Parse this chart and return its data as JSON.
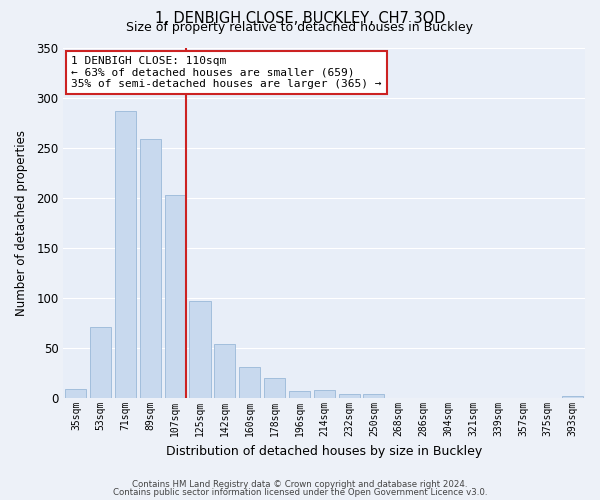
{
  "title": "1, DENBIGH CLOSE, BUCKLEY, CH7 3QD",
  "subtitle": "Size of property relative to detached houses in Buckley",
  "xlabel": "Distribution of detached houses by size in Buckley",
  "ylabel": "Number of detached properties",
  "bar_color": "#c8d9ee",
  "bar_edge_color": "#9ab8d8",
  "highlight_color": "#cc2222",
  "background_color": "#e8eef8",
  "fig_background_color": "#edf1f8",
  "grid_color": "#ffffff",
  "categories": [
    "35sqm",
    "53sqm",
    "71sqm",
    "89sqm",
    "107sqm",
    "125sqm",
    "142sqm",
    "160sqm",
    "178sqm",
    "196sqm",
    "214sqm",
    "232sqm",
    "250sqm",
    "268sqm",
    "286sqm",
    "304sqm",
    "321sqm",
    "339sqm",
    "357sqm",
    "375sqm",
    "393sqm"
  ],
  "values": [
    9,
    71,
    287,
    259,
    203,
    97,
    54,
    31,
    20,
    7,
    8,
    4,
    4,
    0,
    0,
    0,
    0,
    0,
    0,
    0,
    2
  ],
  "ylim": [
    0,
    350
  ],
  "yticks": [
    0,
    50,
    100,
    150,
    200,
    250,
    300,
    350
  ],
  "property_line_x": 4,
  "annotation_title": "1 DENBIGH CLOSE: 110sqm",
  "annotation_line1": "← 63% of detached houses are smaller (659)",
  "annotation_line2": "35% of semi-detached houses are larger (365) →",
  "footer1": "Contains HM Land Registry data © Crown copyright and database right 2024.",
  "footer2": "Contains public sector information licensed under the Open Government Licence v3.0."
}
